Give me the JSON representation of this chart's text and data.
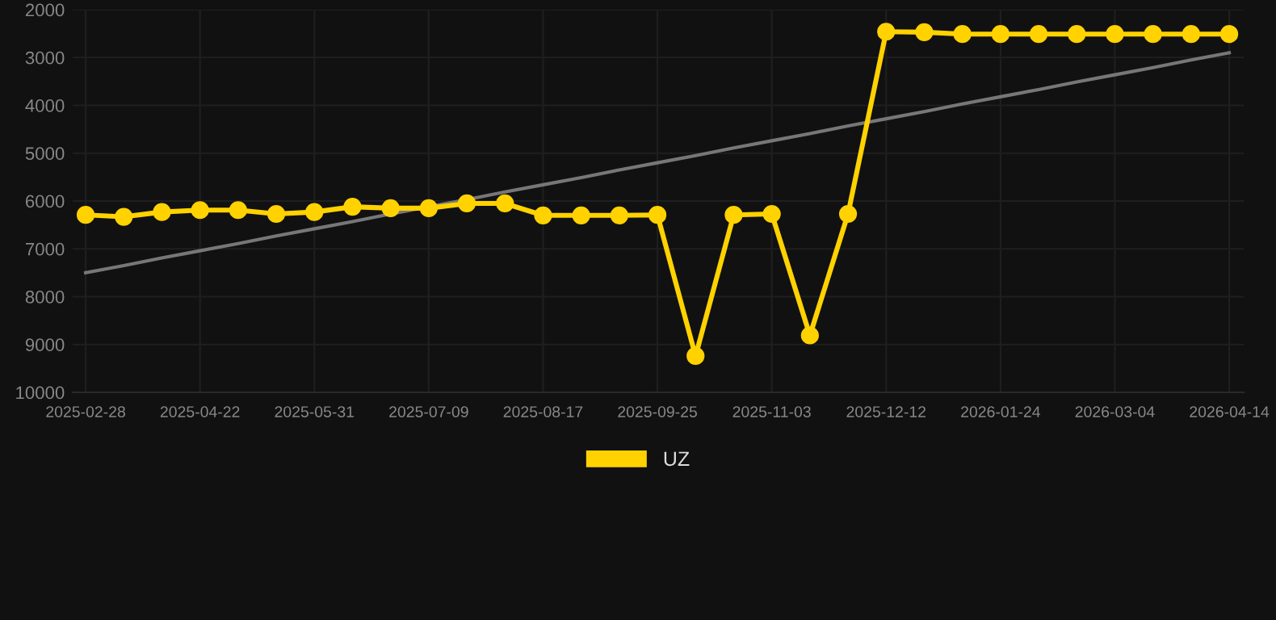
{
  "chart_data": {
    "type": "line",
    "categories": [
      "2025-02-28",
      null,
      null,
      "2025-04-22",
      null,
      null,
      "2025-05-31",
      null,
      null,
      "2025-07-09",
      null,
      null,
      "2025-08-17",
      null,
      null,
      "2025-09-25",
      null,
      null,
      "2025-11-03",
      null,
      null,
      "2025-12-12",
      null,
      null,
      "2026-01-24",
      null,
      null,
      "2026-03-04",
      null,
      null,
      "2026-04-14"
    ],
    "series": [
      {
        "name": "UZ",
        "color": "#ffd200",
        "marker": "circle",
        "values": [
          6290,
          6330,
          6230,
          6190,
          6190,
          6270,
          6230,
          6120,
          6150,
          6150,
          6050,
          6050,
          6300,
          6300,
          6300,
          6290,
          9240,
          6290,
          6270,
          8810,
          6270,
          2460,
          2470,
          2510,
          2510,
          2510,
          2510,
          2510,
          2510,
          2510,
          2510
        ]
      },
      {
        "type": "line",
        "color": "#777777",
        "marker": "none",
        "values": [
          7500,
          7350,
          7190,
          7040,
          6890,
          6730,
          6580,
          6430,
          6270,
          6120,
          5970,
          5810,
          5660,
          5510,
          5350,
          5200,
          5050,
          4890,
          4740,
          4590,
          4430,
          4280,
          4130,
          3970,
          3820,
          3670,
          3510,
          3360,
          3210,
          3050,
          2900
        ]
      }
    ],
    "ylim": [
      10000,
      2000
    ],
    "yticks": [
      2000,
      3000,
      4000,
      5000,
      6000,
      7000,
      8000,
      9000,
      10000
    ],
    "grid": true,
    "legend": "bottom",
    "line_style": "solid"
  }
}
